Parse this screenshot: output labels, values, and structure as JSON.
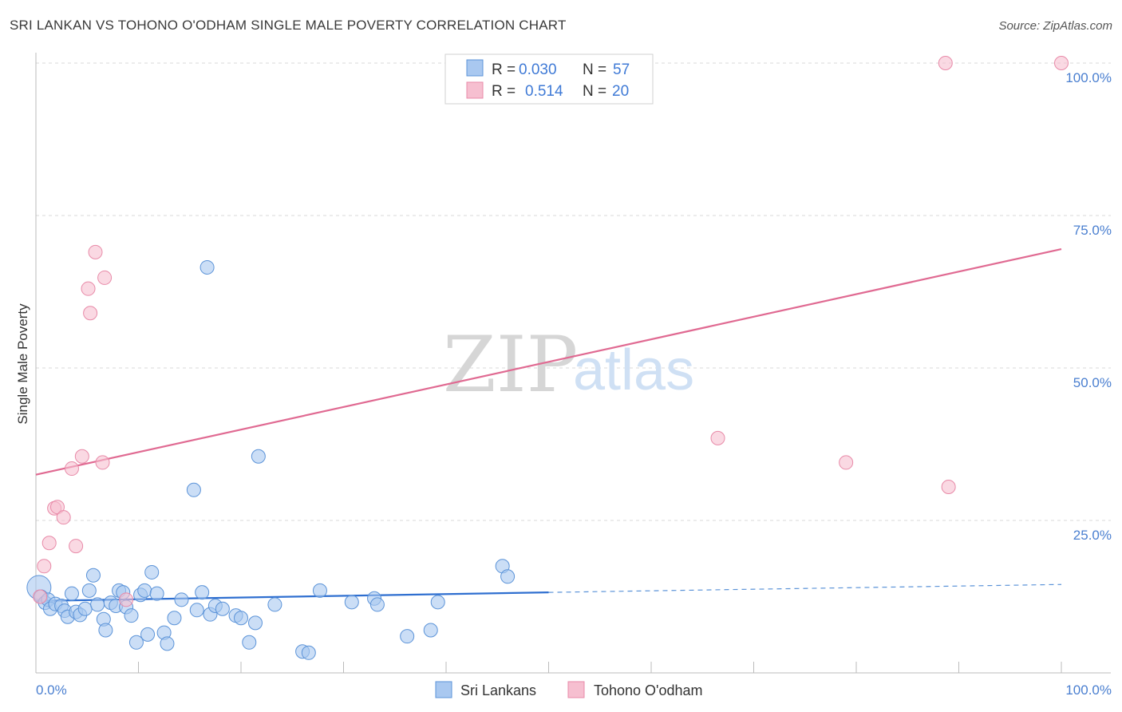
{
  "title": "SRI LANKAN VS TOHONO O'ODHAM SINGLE MALE POVERTY CORRELATION CHART",
  "source": "Source: ZipAtlas.com",
  "colors": {
    "blue_fill": "#a9c8f0",
    "blue_stroke": "#5b93d8",
    "blue_line": "#2f6fd0",
    "pink_fill": "#f6bfd0",
    "pink_stroke": "#e88aa8",
    "pink_line": "#e06a92",
    "tick_text": "#4a7fd0",
    "grid": "#d8d8d8"
  },
  "watermark": {
    "zip": "ZIP",
    "atlas": "atlas"
  },
  "legend": {
    "rows": [
      {
        "r_label": "R =",
        "r_value": "0.030",
        "n_label": "N =",
        "n_value": "57"
      },
      {
        "r_label": "R =",
        "r_value": "0.514",
        "n_label": "N =",
        "n_value": "20"
      }
    ]
  },
  "bottom_legend": [
    "Sri Lankans",
    "Tohono O'odham"
  ],
  "chart_data": {
    "type": "scatter",
    "title": "SRI LANKAN VS TOHONO O'ODHAM SINGLE MALE POVERTY CORRELATION CHART",
    "xlabel": "",
    "ylabel": "Single Male Poverty",
    "xlim": [
      0,
      100
    ],
    "ylim": [
      0,
      100
    ],
    "x_tick_labels": [
      "0.0%",
      "100.0%"
    ],
    "y_tick_labels": [
      "25.0%",
      "50.0%",
      "75.0%",
      "100.0%"
    ],
    "y_ticks": [
      25,
      50,
      75,
      100
    ],
    "x_tick_marks": [
      0,
      10,
      20,
      30,
      40,
      50,
      60,
      70,
      80,
      90,
      100
    ],
    "series": [
      {
        "name": "Sri Lankans",
        "R": 0.03,
        "N": 57,
        "trend": {
          "x": [
            0,
            50
          ],
          "y": [
            11.8,
            13.2
          ],
          "dashed_to": [
            100,
            14.5
          ]
        },
        "points": [
          {
            "x": 0.3,
            "y": 14.0,
            "big": true
          },
          {
            "x": 0.5,
            "y": 12.5
          },
          {
            "x": 0.9,
            "y": 11.5
          },
          {
            "x": 1.2,
            "y": 12.0
          },
          {
            "x": 1.4,
            "y": 10.5
          },
          {
            "x": 1.9,
            "y": 11.3
          },
          {
            "x": 2.5,
            "y": 11.0
          },
          {
            "x": 2.8,
            "y": 10.2
          },
          {
            "x": 3.1,
            "y": 9.2
          },
          {
            "x": 3.5,
            "y": 13.0
          },
          {
            "x": 3.9,
            "y": 10.0
          },
          {
            "x": 4.3,
            "y": 9.5
          },
          {
            "x": 4.8,
            "y": 10.5
          },
          {
            "x": 5.2,
            "y": 13.5
          },
          {
            "x": 5.6,
            "y": 16.0
          },
          {
            "x": 6.0,
            "y": 11.2
          },
          {
            "x": 6.6,
            "y": 8.8
          },
          {
            "x": 6.8,
            "y": 7.0
          },
          {
            "x": 7.3,
            "y": 11.5
          },
          {
            "x": 7.8,
            "y": 11.0
          },
          {
            "x": 8.1,
            "y": 13.5
          },
          {
            "x": 8.5,
            "y": 13.2
          },
          {
            "x": 8.8,
            "y": 10.8
          },
          {
            "x": 9.3,
            "y": 9.4
          },
          {
            "x": 9.8,
            "y": 5.0
          },
          {
            "x": 10.2,
            "y": 12.8
          },
          {
            "x": 10.6,
            "y": 13.5
          },
          {
            "x": 10.9,
            "y": 6.3
          },
          {
            "x": 11.3,
            "y": 16.5
          },
          {
            "x": 11.8,
            "y": 13.0
          },
          {
            "x": 12.5,
            "y": 6.6
          },
          {
            "x": 12.8,
            "y": 4.8
          },
          {
            "x": 13.5,
            "y": 9.0
          },
          {
            "x": 14.2,
            "y": 12.0
          },
          {
            "x": 15.7,
            "y": 10.3
          },
          {
            "x": 16.2,
            "y": 13.2
          },
          {
            "x": 17.0,
            "y": 9.6
          },
          {
            "x": 17.5,
            "y": 11.0
          },
          {
            "x": 18.2,
            "y": 10.5
          },
          {
            "x": 16.7,
            "y": 66.5
          },
          {
            "x": 15.4,
            "y": 30.0
          },
          {
            "x": 21.7,
            "y": 35.5
          },
          {
            "x": 19.5,
            "y": 9.4
          },
          {
            "x": 20.0,
            "y": 9.0
          },
          {
            "x": 20.8,
            "y": 5.0
          },
          {
            "x": 21.4,
            "y": 8.2
          },
          {
            "x": 23.3,
            "y": 11.2
          },
          {
            "x": 26.0,
            "y": 3.5
          },
          {
            "x": 26.6,
            "y": 3.3
          },
          {
            "x": 27.7,
            "y": 13.5
          },
          {
            "x": 30.8,
            "y": 11.6
          },
          {
            "x": 33.0,
            "y": 12.2
          },
          {
            "x": 33.3,
            "y": 11.2
          },
          {
            "x": 36.2,
            "y": 6.0
          },
          {
            "x": 38.5,
            "y": 7.0
          },
          {
            "x": 39.2,
            "y": 11.6
          },
          {
            "x": 45.5,
            "y": 17.5
          },
          {
            "x": 46.0,
            "y": 15.8
          }
        ]
      },
      {
        "name": "Tohono O'odham",
        "R": 0.514,
        "N": 20,
        "trend": {
          "x": [
            0,
            100
          ],
          "y": [
            32.5,
            69.5
          ]
        },
        "points": [
          {
            "x": 0.4,
            "y": 12.5
          },
          {
            "x": 0.8,
            "y": 17.5
          },
          {
            "x": 1.3,
            "y": 21.3
          },
          {
            "x": 1.8,
            "y": 27.0
          },
          {
            "x": 2.1,
            "y": 27.2
          },
          {
            "x": 2.7,
            "y": 25.5
          },
          {
            "x": 3.5,
            "y": 33.5
          },
          {
            "x": 3.9,
            "y": 20.8
          },
          {
            "x": 4.5,
            "y": 35.5
          },
          {
            "x": 5.1,
            "y": 63.0
          },
          {
            "x": 5.3,
            "y": 59.0
          },
          {
            "x": 5.8,
            "y": 69.0
          },
          {
            "x": 6.5,
            "y": 34.5
          },
          {
            "x": 6.7,
            "y": 64.8
          },
          {
            "x": 8.8,
            "y": 12.0
          },
          {
            "x": 66.5,
            "y": 38.5
          },
          {
            "x": 79.0,
            "y": 34.5
          },
          {
            "x": 88.7,
            "y": 100.0
          },
          {
            "x": 89.0,
            "y": 30.5
          },
          {
            "x": 100.0,
            "y": 100.0
          }
        ]
      }
    ]
  }
}
